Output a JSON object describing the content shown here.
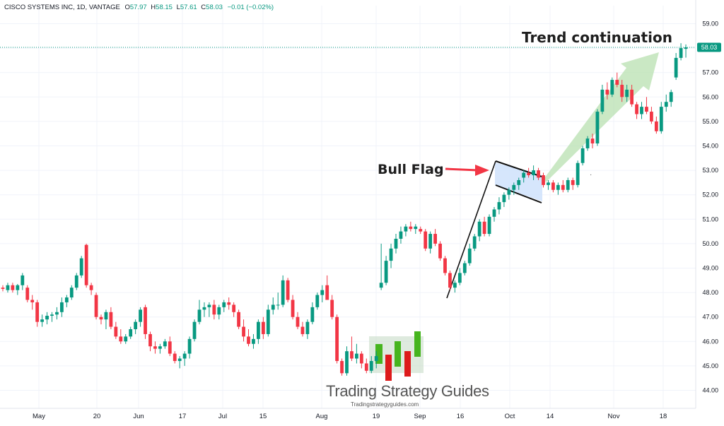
{
  "header": {
    "symbol": "CISCO SYSTEMS INC, 1D, VANTAGE",
    "o_label": "O",
    "o_value": "57.97",
    "h_label": "H",
    "h_value": "58.15",
    "l_label": "L",
    "l_value": "57.61",
    "c_label": "C",
    "c_value": "58.03",
    "change": "−0.01 (−0.02%)"
  },
  "colors": {
    "up": "#089981",
    "down": "#f23645",
    "last_price_bg": "#089981",
    "flag_fill": "#cfe2fb",
    "arrow_red": "#f23645",
    "arrow_green": "#b8e0b0"
  },
  "chart_data": {
    "type": "candlestick",
    "ylim": [
      43.6,
      59.4
    ],
    "y_ticks": [
      "44.00",
      "45.00",
      "46.00",
      "47.00",
      "48.00",
      "49.00",
      "50.00",
      "51.00",
      "52.00",
      "53.00",
      "54.00",
      "55.00",
      "56.00",
      "57.00",
      "58.00",
      "59.00"
    ],
    "x_ticks": [
      "May",
      "20",
      "Jun",
      "17",
      "Jul",
      "15",
      "Aug",
      "19",
      "Sep",
      "16",
      "Oct",
      "14",
      "Nov",
      "18"
    ],
    "last_price": "58.03",
    "candles": [
      [
        48.2,
        48.3,
        48.05,
        48.15
      ],
      [
        48.1,
        48.4,
        48.0,
        48.3
      ],
      [
        48.3,
        48.4,
        48.0,
        48.1
      ],
      [
        48.1,
        48.35,
        47.9,
        48.3
      ],
      [
        48.3,
        48.8,
        48.1,
        48.7
      ],
      [
        48.2,
        48.3,
        47.6,
        47.7
      ],
      [
        47.7,
        47.9,
        47.3,
        47.6
      ],
      [
        47.6,
        47.7,
        46.6,
        46.8
      ],
      [
        46.8,
        47.1,
        46.6,
        46.9
      ],
      [
        46.9,
        47.2,
        46.7,
        47.05
      ],
      [
        47.05,
        47.2,
        46.8,
        47.1
      ],
      [
        47.1,
        47.4,
        46.9,
        47.2
      ],
      [
        47.2,
        47.8,
        47.0,
        47.6
      ],
      [
        47.6,
        47.9,
        47.4,
        47.8
      ],
      [
        47.8,
        48.3,
        47.7,
        48.2
      ],
      [
        48.2,
        48.8,
        48.1,
        48.7
      ],
      [
        48.7,
        49.5,
        48.6,
        49.4
      ],
      [
        49.95,
        50.0,
        48.2,
        48.3
      ],
      [
        48.3,
        48.4,
        47.9,
        48.1
      ],
      [
        47.9,
        48.0,
        46.9,
        47.0
      ],
      [
        47.0,
        47.1,
        46.7,
        46.9
      ],
      [
        46.9,
        47.3,
        46.5,
        47.2
      ],
      [
        47.2,
        47.4,
        46.5,
        46.6
      ],
      [
        46.6,
        46.8,
        46.1,
        46.2
      ],
      [
        46.2,
        46.5,
        45.9,
        46.0
      ],
      [
        46.0,
        46.3,
        45.9,
        46.2
      ],
      [
        46.2,
        46.6,
        46.1,
        46.5
      ],
      [
        46.5,
        46.9,
        46.3,
        46.8
      ],
      [
        46.8,
        47.4,
        46.6,
        47.3
      ],
      [
        47.4,
        47.5,
        46.1,
        46.3
      ],
      [
        46.3,
        46.4,
        45.6,
        45.8
      ],
      [
        45.8,
        46.0,
        45.5,
        45.7
      ],
      [
        45.7,
        45.9,
        45.5,
        45.8
      ],
      [
        45.8,
        46.1,
        45.7,
        46.0
      ],
      [
        46.0,
        46.2,
        45.4,
        45.5
      ],
      [
        45.5,
        45.6,
        45.1,
        45.2
      ],
      [
        45.2,
        45.4,
        44.9,
        45.3
      ],
      [
        45.3,
        45.6,
        45.0,
        45.5
      ],
      [
        45.5,
        46.2,
        45.3,
        46.1
      ],
      [
        46.1,
        46.9,
        46.0,
        46.8
      ],
      [
        46.8,
        47.7,
        46.7,
        47.3
      ],
      [
        47.3,
        47.6,
        47.0,
        47.4
      ],
      [
        47.4,
        47.6,
        47.0,
        47.5
      ],
      [
        47.5,
        47.7,
        46.9,
        47.1
      ],
      [
        47.1,
        47.5,
        46.9,
        47.4
      ],
      [
        47.4,
        47.7,
        47.2,
        47.6
      ],
      [
        47.6,
        47.8,
        47.3,
        47.5
      ],
      [
        47.5,
        47.6,
        47.0,
        47.2
      ],
      [
        47.2,
        47.3,
        46.5,
        46.6
      ],
      [
        46.6,
        46.9,
        46.0,
        46.2
      ],
      [
        46.2,
        46.5,
        45.8,
        45.9
      ],
      [
        45.9,
        46.3,
        45.7,
        46.1
      ],
      [
        46.1,
        46.9,
        45.9,
        46.8
      ],
      [
        46.8,
        47.0,
        46.1,
        46.3
      ],
      [
        46.3,
        47.5,
        46.2,
        47.3
      ],
      [
        47.3,
        47.8,
        47.1,
        47.5
      ],
      [
        47.5,
        48.0,
        47.3,
        47.5
      ],
      [
        47.5,
        48.7,
        47.4,
        48.5
      ],
      [
        48.5,
        48.6,
        47.6,
        47.7
      ],
      [
        47.7,
        47.9,
        46.9,
        47.0
      ],
      [
        47.0,
        47.2,
        46.5,
        46.6
      ],
      [
        46.6,
        46.8,
        46.2,
        46.3
      ],
      [
        46.3,
        46.9,
        46.1,
        46.8
      ],
      [
        46.8,
        47.6,
        46.7,
        47.4
      ],
      [
        47.4,
        48.0,
        47.3,
        47.9
      ],
      [
        47.9,
        48.3,
        47.6,
        48.1
      ],
      [
        48.3,
        48.7,
        47.7,
        47.7
      ],
      [
        47.7,
        47.9,
        46.9,
        47.0
      ],
      [
        47.0,
        47.1,
        45.1,
        45.2
      ],
      [
        45.2,
        45.3,
        44.6,
        44.7
      ],
      [
        44.7,
        45.8,
        44.6,
        45.6
      ],
      [
        45.6,
        46.2,
        45.2,
        45.3
      ],
      [
        45.3,
        45.9,
        45.1,
        45.5
      ],
      [
        45.5,
        45.6,
        44.9,
        45.1
      ],
      [
        45.1,
        45.3,
        44.7,
        44.8
      ],
      [
        44.8,
        45.4,
        44.7,
        45.2
      ],
      [
        45.2,
        45.6,
        44.9,
        45.4
      ],
      [
        48.2,
        50.0,
        48.1,
        48.4
      ],
      [
        48.4,
        49.5,
        48.3,
        49.3
      ],
      [
        49.3,
        50.0,
        49.0,
        49.8
      ],
      [
        49.8,
        50.4,
        49.6,
        50.2
      ],
      [
        50.2,
        50.7,
        50.0,
        50.5
      ],
      [
        50.5,
        50.8,
        50.3,
        50.7
      ],
      [
        50.7,
        50.9,
        50.5,
        50.6
      ],
      [
        50.6,
        50.8,
        50.4,
        50.7
      ],
      [
        50.6,
        50.7,
        50.4,
        50.5
      ],
      [
        50.5,
        50.6,
        49.7,
        49.8
      ],
      [
        49.8,
        50.5,
        49.6,
        50.4
      ],
      [
        50.4,
        50.6,
        49.9,
        50.0
      ],
      [
        50.0,
        50.1,
        49.3,
        49.4
      ],
      [
        49.4,
        49.5,
        48.7,
        48.8
      ],
      [
        48.8,
        48.9,
        48.1,
        48.2
      ],
      [
        48.2,
        48.5,
        48.0,
        48.4
      ],
      [
        48.4,
        49.0,
        48.3,
        48.8
      ],
      [
        48.8,
        49.3,
        48.7,
        49.2
      ],
      [
        49.2,
        50.0,
        49.1,
        49.8
      ],
      [
        49.8,
        50.4,
        49.7,
        50.3
      ],
      [
        50.3,
        51.0,
        50.1,
        50.9
      ],
      [
        50.9,
        51.1,
        50.3,
        50.4
      ],
      [
        50.4,
        51.2,
        50.3,
        51.1
      ],
      [
        51.1,
        51.5,
        50.9,
        51.4
      ],
      [
        51.4,
        51.9,
        51.2,
        51.7
      ],
      [
        51.7,
        52.1,
        51.5,
        52.0
      ],
      [
        52.0,
        52.3,
        51.8,
        52.2
      ],
      [
        52.2,
        52.5,
        52.0,
        52.4
      ],
      [
        52.4,
        52.7,
        52.2,
        52.6
      ],
      [
        52.7,
        53.0,
        52.5,
        52.9
      ],
      [
        52.9,
        53.1,
        52.7,
        52.8
      ],
      [
        52.8,
        53.2,
        52.6,
        53.0
      ],
      [
        53.0,
        53.1,
        52.6,
        52.7
      ],
      [
        52.8,
        52.9,
        52.3,
        52.4
      ],
      [
        52.4,
        52.6,
        52.2,
        52.5
      ],
      [
        52.5,
        52.6,
        52.1,
        52.2
      ],
      [
        52.2,
        52.5,
        52.0,
        52.4
      ],
      [
        52.4,
        52.6,
        52.1,
        52.2
      ],
      [
        52.2,
        52.7,
        52.1,
        52.6
      ],
      [
        52.6,
        52.7,
        52.2,
        52.4
      ],
      [
        52.4,
        53.4,
        52.3,
        53.3
      ],
      [
        53.3,
        54.0,
        53.2,
        53.9
      ],
      [
        53.9,
        54.4,
        53.8,
        54.3
      ],
      [
        54.3,
        54.5,
        53.9,
        54.1
      ],
      [
        54.1,
        55.5,
        54.0,
        55.4
      ],
      [
        55.4,
        56.5,
        55.3,
        56.3
      ],
      [
        56.3,
        56.6,
        55.9,
        56.1
      ],
      [
        56.1,
        56.8,
        56.0,
        56.7
      ],
      [
        56.7,
        57.0,
        56.4,
        56.5
      ],
      [
        56.5,
        56.7,
        55.8,
        56.0
      ],
      [
        56.0,
        56.5,
        55.8,
        56.3
      ],
      [
        56.3,
        56.5,
        55.6,
        55.7
      ],
      [
        55.7,
        55.8,
        55.1,
        55.3
      ],
      [
        55.3,
        55.8,
        55.1,
        55.6
      ],
      [
        55.6,
        56.0,
        55.3,
        55.4
      ],
      [
        55.4,
        55.6,
        54.9,
        55.0
      ],
      [
        55.0,
        55.2,
        54.5,
        54.6
      ],
      [
        54.6,
        55.8,
        54.5,
        55.6
      ],
      [
        55.6,
        56.1,
        55.4,
        55.8
      ],
      [
        55.8,
        56.3,
        55.6,
        56.2
      ],
      [
        56.8,
        57.8,
        56.7,
        57.6
      ],
      [
        57.6,
        58.2,
        57.5,
        58.0
      ],
      [
        57.97,
        58.15,
        57.61,
        58.03
      ]
    ]
  },
  "annotations": {
    "bull_flag": "Bull Flag",
    "trend": "Trend continuation"
  },
  "watermark": {
    "title": "Trading Strategy Guides",
    "url": "Tradingstrategyguides.com"
  }
}
